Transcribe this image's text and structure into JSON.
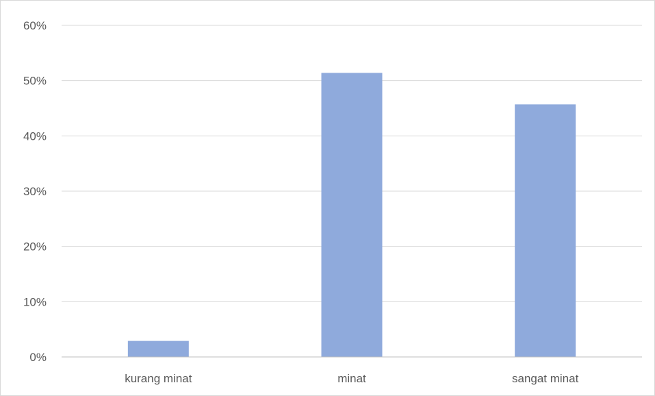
{
  "chart_data": {
    "type": "bar",
    "title": "",
    "xlabel": "",
    "ylabel": "",
    "categories": [
      "kurang minat",
      "minat",
      "sangat minat"
    ],
    "values": [
      2.9,
      51.4,
      45.7
    ],
    "unit": "%",
    "ylim": [
      0,
      60
    ],
    "yticks": [
      0,
      10,
      20,
      30,
      40,
      50,
      60
    ],
    "ytick_labels": [
      "0%",
      "10%",
      "20%",
      "30%",
      "40%",
      "50%",
      "60%"
    ],
    "grid": true,
    "legend": "none",
    "colors": {
      "bar": "#8faadc",
      "grid": "#d9d9d9",
      "axis": "#bfbfbf",
      "text": "#595959"
    }
  }
}
